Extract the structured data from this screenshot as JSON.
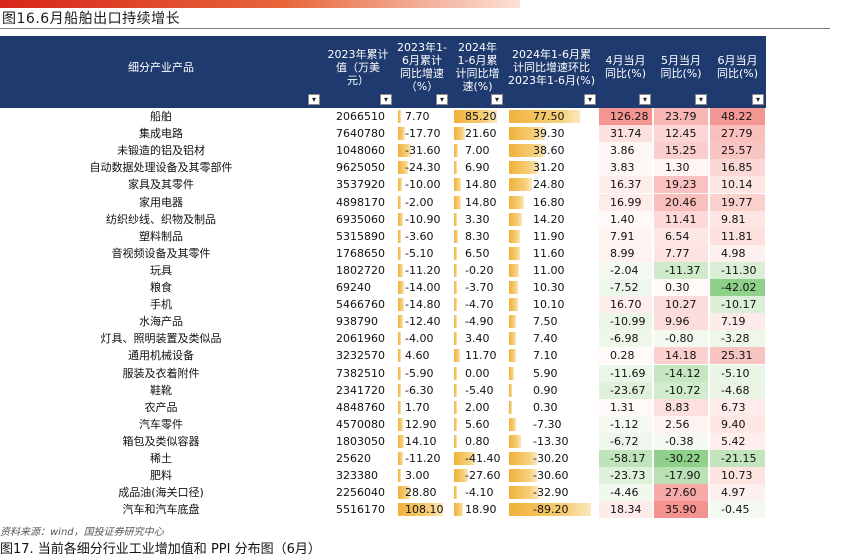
{
  "figure_title": "图16.6月船舶出口持续增长",
  "next_figure_title": "图17. 当前各细分行业工业增加值和 PPI 分布图（6月）",
  "source_note": "资料来源：wind，国投证券研究中心",
  "colors": {
    "header_bg": "#1f3a6e",
    "bar_color": "#f0b23a",
    "positive_heat": "#f4a7a5",
    "negative_heat": "#9fd69a",
    "accent_red": "#d7261b"
  },
  "headers": [
    {
      "label": "细分产业产品",
      "filter": "▾"
    },
    {
      "label": "2023年累计值（万美元）",
      "filter": "▾"
    },
    {
      "label": "2023年1-6月累计同比增速（%）",
      "filter": "▾"
    },
    {
      "label": "2024年1-6月累计同比增速(%)",
      "filter": "▾"
    },
    {
      "label": "2024年1-6月累计同比增速环比2023年1-6月(%)",
      "filter": "▾"
    },
    {
      "label": "4月当月同比(%)",
      "filter": "▾"
    },
    {
      "label": "5月当月同比(%)",
      "filter": "▾"
    },
    {
      "label": "6月当月同比(%)",
      "filter": "▾"
    }
  ],
  "rows": [
    {
      "name": "船舶",
      "total": "2066510",
      "g2023": "7.70",
      "g2024": "85.20",
      "diff": "77.50",
      "apr": "126.28",
      "may": "23.79",
      "jun": "48.22"
    },
    {
      "name": "集成电路",
      "total": "7640780",
      "g2023": "-17.70",
      "g2024": "21.60",
      "diff": "39.30",
      "apr": "31.74",
      "may": "12.45",
      "jun": "27.79"
    },
    {
      "name": "未锻造的铝及铝材",
      "total": "1048060",
      "g2023": "-31.60",
      "g2024": "7.00",
      "diff": "38.60",
      "apr": "3.86",
      "may": "15.25",
      "jun": "25.57"
    },
    {
      "name": "自动数据处理设备及其零部件",
      "total": "9625050",
      "g2023": "-24.30",
      "g2024": "6.90",
      "diff": "31.20",
      "apr": "3.83",
      "may": "1.30",
      "jun": "16.85"
    },
    {
      "name": "家具及其零件",
      "total": "3537920",
      "g2023": "-10.00",
      "g2024": "14.80",
      "diff": "24.80",
      "apr": "16.37",
      "may": "19.23",
      "jun": "10.14"
    },
    {
      "name": "家用电器",
      "total": "4898170",
      "g2023": "-2.00",
      "g2024": "14.80",
      "diff": "16.80",
      "apr": "16.99",
      "may": "20.46",
      "jun": "19.77"
    },
    {
      "name": "纺织纱线、织物及制品",
      "total": "6935060",
      "g2023": "-10.90",
      "g2024": "3.30",
      "diff": "14.20",
      "apr": "1.40",
      "may": "11.41",
      "jun": "9.81"
    },
    {
      "name": "塑料制品",
      "total": "5315890",
      "g2023": "-3.60",
      "g2024": "8.30",
      "diff": "11.90",
      "apr": "7.91",
      "may": "6.54",
      "jun": "11.81"
    },
    {
      "name": "音视频设备及其零件",
      "total": "1768650",
      "g2023": "-5.10",
      "g2024": "6.50",
      "diff": "11.60",
      "apr": "8.99",
      "may": "7.77",
      "jun": "4.98"
    },
    {
      "name": "玩具",
      "total": "1802720",
      "g2023": "-11.20",
      "g2024": "-0.20",
      "diff": "11.00",
      "apr": "-2.04",
      "may": "-11.37",
      "jun": "-11.30"
    },
    {
      "name": "粮食",
      "total": "69240",
      "g2023": "-14.00",
      "g2024": "-3.70",
      "diff": "10.30",
      "apr": "-7.52",
      "may": "0.30",
      "jun": "-42.02"
    },
    {
      "name": "手机",
      "total": "5466760",
      "g2023": "-14.80",
      "g2024": "-4.70",
      "diff": "10.10",
      "apr": "16.70",
      "may": "10.27",
      "jun": "-10.17"
    },
    {
      "name": "水海产品",
      "total": "938790",
      "g2023": "-12.40",
      "g2024": "-4.90",
      "diff": "7.50",
      "apr": "-10.99",
      "may": "9.96",
      "jun": "7.19"
    },
    {
      "name": "灯具、照明装置及类似品",
      "total": "2061960",
      "g2023": "-4.00",
      "g2024": "3.40",
      "diff": "7.40",
      "apr": "-6.98",
      "may": "-0.80",
      "jun": "-3.28"
    },
    {
      "name": "通用机械设备",
      "total": "3232570",
      "g2023": "4.60",
      "g2024": "11.70",
      "diff": "7.10",
      "apr": "0.28",
      "may": "14.18",
      "jun": "25.31"
    },
    {
      "name": "服装及衣着附件",
      "total": "7382510",
      "g2023": "-5.90",
      "g2024": "0.00",
      "diff": "5.90",
      "apr": "-11.69",
      "may": "-14.12",
      "jun": "-5.10"
    },
    {
      "name": "鞋靴",
      "total": "2341720",
      "g2023": "-6.30",
      "g2024": "-5.40",
      "diff": "0.90",
      "apr": "-23.67",
      "may": "-10.72",
      "jun": "-4.68"
    },
    {
      "name": "农产品",
      "total": "4848760",
      "g2023": "1.70",
      "g2024": "2.00",
      "diff": "0.30",
      "apr": "1.31",
      "may": "8.83",
      "jun": "6.73"
    },
    {
      "name": "汽车零件",
      "total": "4570080",
      "g2023": "12.90",
      "g2024": "5.60",
      "diff": "-7.30",
      "apr": "-1.12",
      "may": "2.56",
      "jun": "9.40"
    },
    {
      "name": "箱包及类似容器",
      "total": "1803050",
      "g2023": "14.10",
      "g2024": "0.80",
      "diff": "-13.30",
      "apr": "-6.72",
      "may": "-0.38",
      "jun": "5.42"
    },
    {
      "name": "稀土",
      "total": "25620",
      "g2023": "-11.20",
      "g2024": "-41.40",
      "diff": "-30.20",
      "apr": "-58.17",
      "may": "-30.22",
      "jun": "-21.15"
    },
    {
      "name": "肥料",
      "total": "323380",
      "g2023": "3.00",
      "g2024": "-27.60",
      "diff": "-30.60",
      "apr": "-23.73",
      "may": "-17.90",
      "jun": "10.73"
    },
    {
      "name": "成品油(海关口径)",
      "total": "2256040",
      "g2023": "28.80",
      "g2024": "-4.10",
      "diff": "-32.90",
      "apr": "-4.46",
      "may": "27.60",
      "jun": "4.97"
    },
    {
      "name": "汽车和汽车底盘",
      "total": "5516170",
      "g2023": "108.10",
      "g2024": "18.90",
      "diff": "-89.20",
      "apr": "18.34",
      "may": "35.90",
      "jun": "-0.45"
    }
  ]
}
